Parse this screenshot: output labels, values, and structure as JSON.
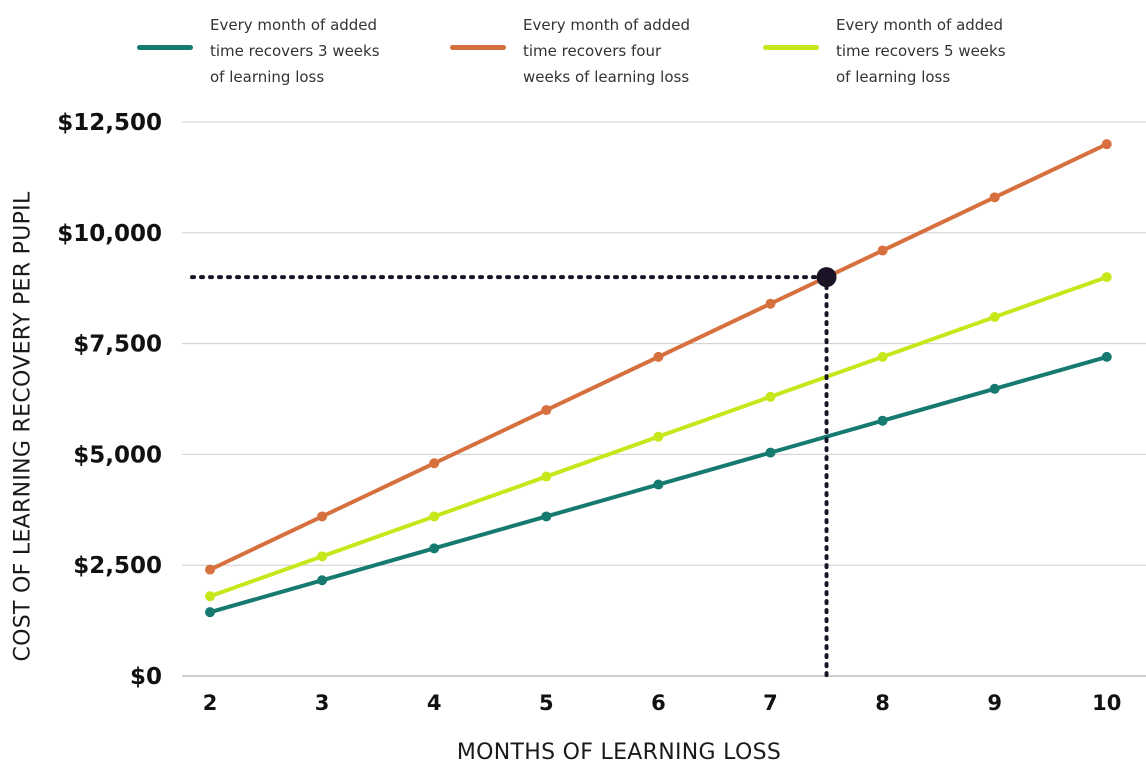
{
  "chart_data": {
    "type": "line",
    "title": "",
    "xlabel": "MONTHS OF LEARNING LOSS",
    "ylabel": "COST OF LEARNING RECOVERY PER PUPIL",
    "x": [
      2,
      3,
      4,
      5,
      6,
      7,
      8,
      9,
      10
    ],
    "xlim": [
      1.75,
      10.35
    ],
    "ylim": [
      0,
      12500
    ],
    "yticks": [
      0,
      2500,
      5000,
      7500,
      10000,
      12500
    ],
    "ytick_labels": [
      "$0",
      "$2,500",
      "$5,000",
      "$7,500",
      "$10,000",
      "$12,500"
    ],
    "xtick_labels": [
      "2",
      "3",
      "4",
      "5",
      "6",
      "7",
      "8",
      "9",
      "10"
    ],
    "grid": "horizontal",
    "legend_position": "top",
    "series": [
      {
        "name": "Every month of added time recovers 3 weeks of learning loss",
        "label_lines": [
          "Every month of added",
          "time recovers 3 weeks",
          "of learning loss"
        ],
        "color": "#167a70",
        "values": [
          1440,
          2160,
          2880,
          3600,
          4320,
          5040,
          5760,
          6480,
          7200
        ]
      },
      {
        "name": "Every month of added time recovers four weeks of learning loss",
        "label_lines": [
          "Every month of added",
          "time recovers four",
          "weeks of learning loss"
        ],
        "color": "#d6703f",
        "values": [
          2400,
          3600,
          4800,
          6000,
          7200,
          8400,
          9600,
          10800,
          12000
        ]
      },
      {
        "name": "Every month of added time recovers 5 weeks of learning loss",
        "label_lines": [
          "Every month of added",
          "time recovers 5 weeks",
          "of learning loss"
        ],
        "color": "#c5e81a",
        "values": [
          1800,
          2700,
          3600,
          4500,
          5400,
          6300,
          7200,
          8100,
          9000
        ]
      }
    ],
    "annotation": {
      "x": 7.5,
      "y": 9000,
      "style": "dotted reference lines to both axes with highlighted point",
      "color": "#1d1327"
    }
  }
}
